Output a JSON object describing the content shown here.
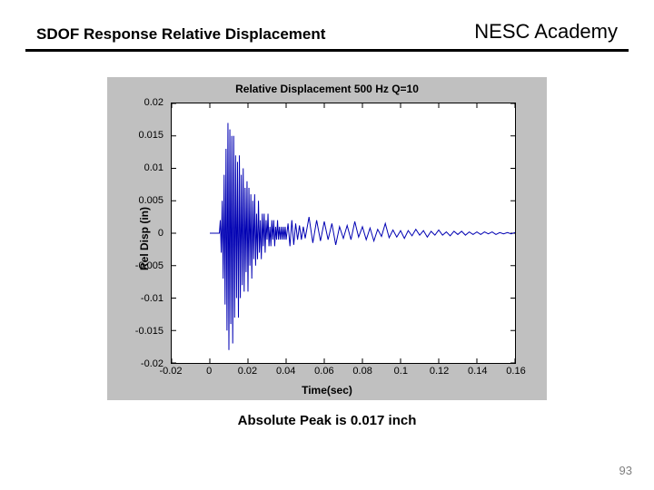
{
  "header": {
    "title_left": "SDOF Response Relative Displacement",
    "title_right": "NESC Academy"
  },
  "chart": {
    "type": "line",
    "title": "Relative Displacement 500 Hz  Q=10",
    "xlabel": "Time(sec)",
    "ylabel": "Rel Disp (in)",
    "xlim": [
      -0.02,
      0.16
    ],
    "ylim": [
      -0.02,
      0.02
    ],
    "xticks": [
      -0.02,
      0,
      0.02,
      0.04,
      0.06,
      0.08,
      0.1,
      0.12,
      0.14,
      0.16
    ],
    "xtick_labels": [
      "-0.02",
      "0",
      "0.02",
      "0.04",
      "0.06",
      "0.08",
      "0.1",
      "0.12",
      "0.14",
      "0.16"
    ],
    "yticks": [
      -0.02,
      -0.015,
      -0.01,
      -0.005,
      0,
      0.005,
      0.01,
      0.015,
      0.02
    ],
    "ytick_labels": [
      "-0.02",
      "-0.015",
      "-0.01",
      "-0.005",
      "0",
      "0.005",
      "0.01",
      "0.015",
      "0.02"
    ],
    "line_color": "#0000b3",
    "line_width": 1,
    "background_color": "#c0c0c0",
    "plot_bg": "#ffffff",
    "tick_color": "#000000",
    "grid": false,
    "series": {
      "t": [
        0,
        0.0005,
        0.001,
        0.0015,
        0.002,
        0.0025,
        0.003,
        0.0035,
        0.004,
        0.0045,
        0.005,
        0.0055,
        0.006,
        0.0065,
        0.007,
        0.0075,
        0.008,
        0.0085,
        0.009,
        0.0095,
        0.01,
        0.0105,
        0.011,
        0.0115,
        0.012,
        0.0125,
        0.013,
        0.0135,
        0.014,
        0.0145,
        0.015,
        0.0155,
        0.016,
        0.0165,
        0.017,
        0.0175,
        0.018,
        0.0185,
        0.019,
        0.0195,
        0.02,
        0.0205,
        0.021,
        0.0215,
        0.022,
        0.0225,
        0.023,
        0.0235,
        0.024,
        0.0245,
        0.025,
        0.0255,
        0.026,
        0.0265,
        0.027,
        0.0275,
        0.028,
        0.0285,
        0.029,
        0.0295,
        0.03,
        0.0305,
        0.031,
        0.0315,
        0.032,
        0.0325,
        0.033,
        0.0335,
        0.034,
        0.0345,
        0.035,
        0.0355,
        0.036,
        0.0365,
        0.037,
        0.0375,
        0.038,
        0.0385,
        0.039,
        0.0395,
        0.04,
        0.041,
        0.042,
        0.043,
        0.044,
        0.045,
        0.046,
        0.047,
        0.048,
        0.049,
        0.05,
        0.052,
        0.054,
        0.056,
        0.058,
        0.06,
        0.062,
        0.064,
        0.066,
        0.068,
        0.07,
        0.072,
        0.074,
        0.076,
        0.078,
        0.08,
        0.082,
        0.084,
        0.086,
        0.088,
        0.09,
        0.092,
        0.094,
        0.096,
        0.098,
        0.1,
        0.102,
        0.104,
        0.106,
        0.108,
        0.11,
        0.112,
        0.114,
        0.116,
        0.118,
        0.12,
        0.122,
        0.124,
        0.126,
        0.128,
        0.13,
        0.132,
        0.134,
        0.136,
        0.138,
        0.14,
        0.142,
        0.144,
        0.146,
        0.148,
        0.15,
        0.152,
        0.154,
        0.156,
        0.158,
        0.16
      ],
      "y": [
        0,
        0,
        0,
        0,
        0,
        0,
        0,
        0,
        0,
        0,
        0,
        0.002,
        -0.003,
        0.005,
        -0.007,
        0.009,
        -0.011,
        0.013,
        -0.015,
        0.017,
        -0.018,
        0.016,
        -0.014,
        0.015,
        -0.017,
        0.015,
        -0.013,
        0.012,
        -0.01,
        0.011,
        -0.013,
        0.012,
        -0.01,
        0.009,
        -0.008,
        0.01,
        -0.009,
        0.007,
        -0.006,
        0.008,
        -0.009,
        0.007,
        -0.005,
        0.006,
        -0.007,
        0.005,
        -0.004,
        0.006,
        -0.005,
        0.003,
        -0.004,
        0.005,
        -0.003,
        0.002,
        -0.004,
        0.003,
        -0.002,
        0.003,
        -0.003,
        0.002,
        -0.001,
        0.003,
        -0.002,
        0.001,
        -0.002,
        0.002,
        -0.001,
        0.002,
        -0.002,
        0.001,
        -0.001,
        0.002,
        -0.001,
        0.001,
        -0.001,
        0.001,
        -0.001,
        0.001,
        -0.001,
        0.001,
        -0.001,
        0.0015,
        -0.002,
        0.002,
        -0.0018,
        0.0015,
        -0.001,
        0.0012,
        -0.001,
        0.001,
        -0.0008,
        0.0025,
        -0.0015,
        0.002,
        -0.0012,
        0.0018,
        -0.001,
        0.0015,
        -0.0018,
        0.001,
        -0.0008,
        0.0012,
        -0.001,
        0.0018,
        -0.0006,
        0.001,
        -0.001,
        0.0008,
        -0.0012,
        0.0006,
        -0.0005,
        0.0015,
        -0.0007,
        0.0005,
        -0.0006,
        0.0004,
        -0.0008,
        0.0004,
        -0.0004,
        0.0006,
        -0.0003,
        0.0004,
        -0.0006,
        0.0003,
        -0.0003,
        0.0005,
        -0.0003,
        0.0002,
        -0.0004,
        0.0003,
        -0.0002,
        0.0003,
        -0.0003,
        0.0002,
        -0.0002,
        0.0002,
        -0.0002,
        0.0002,
        -0.0001,
        0.0002,
        -0.0002,
        0.0001,
        -0.0001,
        0.0001,
        -0.0001,
        0.0001
      ]
    }
  },
  "caption": "Absolute Peak is 0.017 inch",
  "pagenum": "93"
}
